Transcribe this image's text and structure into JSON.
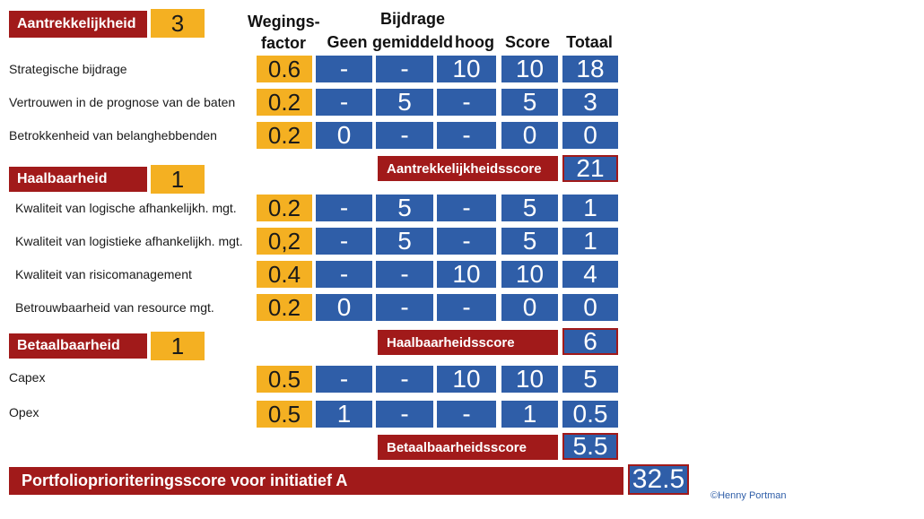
{
  "headers": {
    "weging_line1": "Wegings-",
    "weging_line2": "factor",
    "bijdrage": "Bijdrage",
    "geen": "Geen",
    "gemiddeld": "gemiddeld",
    "hoog": "hoog",
    "score": "Score",
    "totaal": "Totaal"
  },
  "sections": [
    {
      "title": "Aantrekkelijkheid",
      "weight": "3",
      "rows": [
        {
          "label": "Strategische bijdrage",
          "factor": "0.6",
          "geen": "-",
          "gemiddeld": "-",
          "hoog": "10",
          "score": "10",
          "totaal": "18"
        },
        {
          "label": "Vertrouwen in de prognose van de baten",
          "factor": "0.2",
          "geen": "-",
          "gemiddeld": "5",
          "hoog": "-",
          "score": "5",
          "totaal": "3"
        },
        {
          "label": "Betrokkenheid van belanghebbenden",
          "factor": "0.2",
          "geen": "0",
          "gemiddeld": "-",
          "hoog": "-",
          "score": "0",
          "totaal": "0"
        }
      ],
      "score_label": "Aantrekkelijkheidsscore",
      "score_value": "21"
    },
    {
      "title": "Haalbaarheid",
      "weight": "1",
      "rows": [
        {
          "label": "Kwaliteit van logische afhankelijkh. mgt.",
          "factor": "0.2",
          "geen": "-",
          "gemiddeld": "5",
          "hoog": "-",
          "score": "5",
          "totaal": "1"
        },
        {
          "label": "Kwaliteit van logistieke afhankelijkh. mgt.",
          "factor": "0,2",
          "geen": "-",
          "gemiddeld": "5",
          "hoog": "-",
          "score": "5",
          "totaal": "1"
        },
        {
          "label": "Kwaliteit van risicomanagement",
          "factor": "0.4",
          "geen": "-",
          "gemiddeld": "-",
          "hoog": "10",
          "score": "10",
          "totaal": "4"
        },
        {
          "label": "Betrouwbaarheid van resource mgt.",
          "factor": "0.2",
          "geen": "0",
          "gemiddeld": "-",
          "hoog": "-",
          "score": "0",
          "totaal": "0"
        }
      ],
      "score_label": "Haalbaarheidsscore",
      "score_value": "6"
    },
    {
      "title": "Betaalbaarheid",
      "weight": "1",
      "rows": [
        {
          "label": "Capex",
          "factor": "0.5",
          "geen": "-",
          "gemiddeld": "-",
          "hoog": "10",
          "score": "10",
          "totaal": "5"
        },
        {
          "label": "Opex",
          "factor": "0.5",
          "geen": "1",
          "gemiddeld": "-",
          "hoog": "-",
          "score": "1",
          "totaal": "0.5"
        }
      ],
      "score_label": "Betaalbaarheidsscore",
      "score_value": "5.5"
    }
  ],
  "final": {
    "label": "Portfolioprioriteringsscore voor initiatief A",
    "value": "32.5"
  },
  "copyright": "©Henny Portman",
  "colors": {
    "red": "#a11a1a",
    "orange": "#f4b022",
    "blue": "#2f5ea8"
  }
}
